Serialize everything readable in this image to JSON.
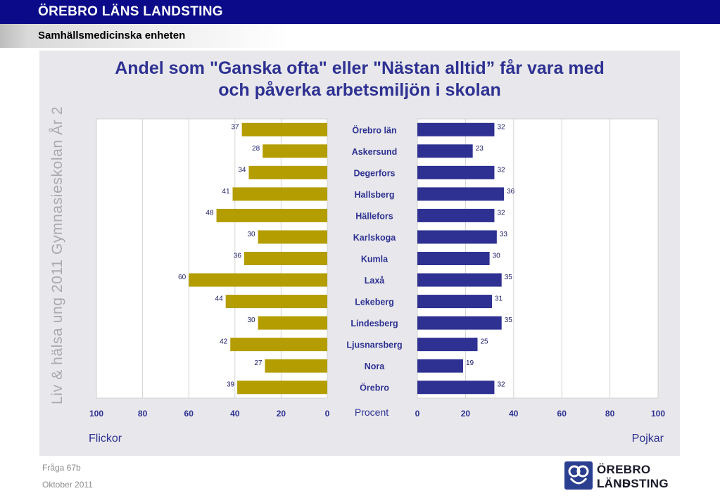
{
  "header": {
    "org": "ÖREBRO LÄNS LANDSTING",
    "unit": "Samhällsmedicinska enheten"
  },
  "side_label": "Liv & hälsa ung 2011 Gymnasieskolan År 2",
  "footer": {
    "question": "Fråga 67b",
    "date": "Oktober 2011"
  },
  "logo": {
    "line1": "ÖREBRO LÄNS",
    "line2": "LANDSTING",
    "mark": "landsting-logo-icon"
  },
  "colors": {
    "girls": "#b39d00",
    "boys": "#2e3192",
    "title": "#2e3192",
    "panel": "#e8e8ec"
  },
  "chart_data": {
    "type": "bar",
    "title": "Andel som \"Ganska ofta\" eller \"Nästan alltid” får vara med och påverka arbetsmiljön i skolan",
    "title_lines": [
      "Andel som \"Ganska ofta\" eller \"Nästan alltid” får vara med",
      "och påverka arbetsmiljön i skolan"
    ],
    "categories": [
      "Örebro län",
      "Askersund",
      "Degerfors",
      "Hallsberg",
      "Hällefors",
      "Karlskoga",
      "Kumla",
      "Laxå",
      "Lekeberg",
      "Lindesberg",
      "Ljusnarsberg",
      "Nora",
      "Örebro"
    ],
    "series": [
      {
        "name": "Flickor",
        "side": "left",
        "values": [
          37,
          28,
          34,
          41,
          48,
          30,
          36,
          60,
          44,
          30,
          42,
          27,
          39
        ]
      },
      {
        "name": "Pojkar",
        "side": "right",
        "values": [
          32,
          23,
          32,
          36,
          32,
          33,
          30,
          35,
          31,
          35,
          25,
          19,
          32
        ]
      }
    ],
    "xlabel": "Procent",
    "xlim": [
      0,
      100
    ],
    "left_ticks": [
      "100",
      "80",
      "60",
      "40",
      "20",
      "0"
    ],
    "right_ticks": [
      "0",
      "20",
      "40",
      "60",
      "80",
      "100"
    ],
    "grid": true
  }
}
